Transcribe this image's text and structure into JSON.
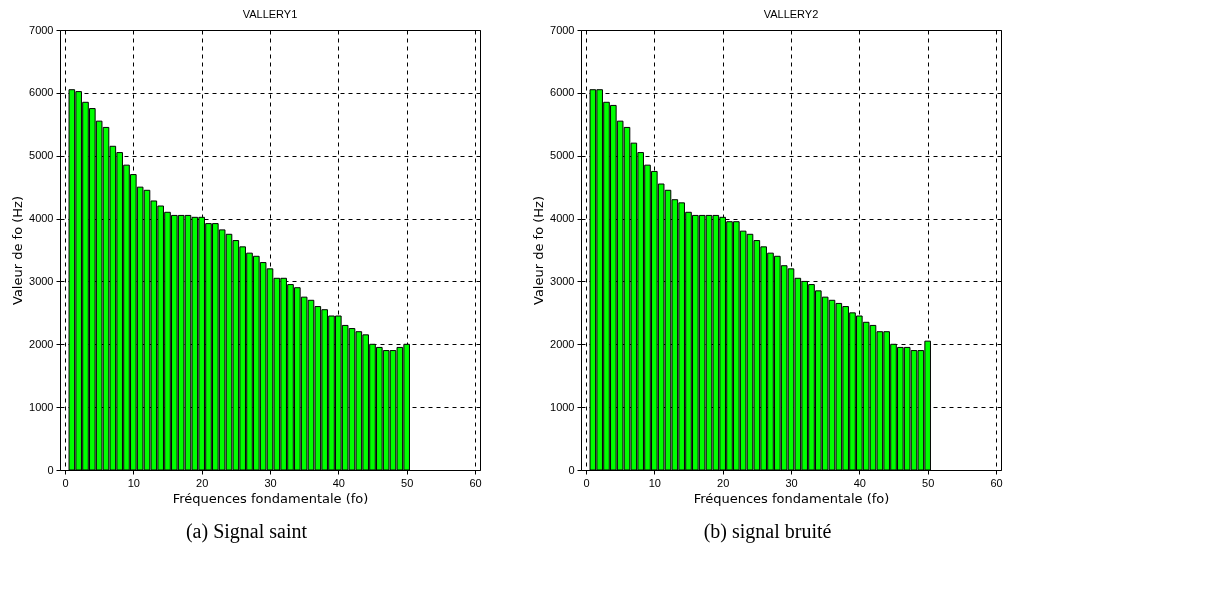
{
  "chart_data": [
    {
      "type": "bar",
      "title": "VALLERY1",
      "xlabel": "Fréquences fondamentale (fo)",
      "ylabel": "Valeur de fo (Hz)",
      "annotations": [
        "(a) Signal saint"
      ],
      "x": [
        1,
        2,
        3,
        4,
        5,
        6,
        7,
        8,
        9,
        10,
        11,
        12,
        13,
        14,
        15,
        16,
        17,
        18,
        19,
        20,
        21,
        22,
        23,
        24,
        25,
        26,
        27,
        28,
        29,
        30,
        31,
        32,
        33,
        34,
        35,
        36,
        37,
        38,
        39,
        40,
        41,
        42,
        43,
        44,
        45,
        46,
        47,
        48,
        49,
        50
      ],
      "series": [
        {
          "color": "#00ff00",
          "values": [
            6050,
            6020,
            5850,
            5750,
            5550,
            5450,
            5150,
            5050,
            4850,
            4700,
            4500,
            4450,
            4280,
            4200,
            4100,
            4050,
            4050,
            4050,
            4020,
            4020,
            3920,
            3920,
            3820,
            3750,
            3650,
            3550,
            3450,
            3400,
            3300,
            3200,
            3050,
            3050,
            2950,
            2900,
            2750,
            2700,
            2600,
            2550,
            2450,
            2450,
            2300,
            2250,
            2200,
            2150,
            2000,
            1950,
            1900,
            1900,
            1950,
            2000
          ]
        }
      ],
      "xlim": [
        0,
        60
      ],
      "xticks": [
        0,
        10,
        20,
        30,
        40,
        50,
        60
      ],
      "ylim": [
        0,
        7000
      ],
      "yticks": [
        0,
        1000,
        2000,
        3000,
        4000,
        5000,
        6000,
        7000
      ],
      "grid": true,
      "line_style": "dashed"
    },
    {
      "type": "bar",
      "title": "VALLERY2",
      "xlabel": "Fréquences fondamentale (fo)",
      "ylabel": "Valeur de fo (Hz)",
      "annotations": [
        "(b) signal bruité"
      ],
      "x": [
        1,
        2,
        3,
        4,
        5,
        6,
        7,
        8,
        9,
        10,
        11,
        12,
        13,
        14,
        15,
        16,
        17,
        18,
        19,
        20,
        21,
        22,
        23,
        24,
        25,
        26,
        27,
        28,
        29,
        30,
        31,
        32,
        33,
        34,
        35,
        36,
        37,
        38,
        39,
        40,
        41,
        42,
        43,
        44,
        45,
        46,
        47,
        48,
        49,
        50
      ],
      "series": [
        {
          "color": "#00ff00",
          "values": [
            6050,
            6050,
            5850,
            5800,
            5550,
            5450,
            5200,
            5050,
            4850,
            4750,
            4550,
            4450,
            4300,
            4250,
            4100,
            4050,
            4050,
            4050,
            4050,
            4020,
            3950,
            3950,
            3800,
            3750,
            3650,
            3550,
            3450,
            3400,
            3250,
            3200,
            3050,
            3000,
            2950,
            2850,
            2750,
            2700,
            2650,
            2600,
            2500,
            2450,
            2350,
            2300,
            2200,
            2200,
            2000,
            1950,
            1950,
            1900,
            1900,
            2050
          ]
        }
      ],
      "xlim": [
        0,
        60
      ],
      "xticks": [
        0,
        10,
        20,
        30,
        40,
        50,
        60
      ],
      "ylim": [
        0,
        7000
      ],
      "yticks": [
        0,
        1000,
        2000,
        3000,
        4000,
        5000,
        6000,
        7000
      ],
      "grid": true,
      "line_style": "dashed"
    }
  ]
}
